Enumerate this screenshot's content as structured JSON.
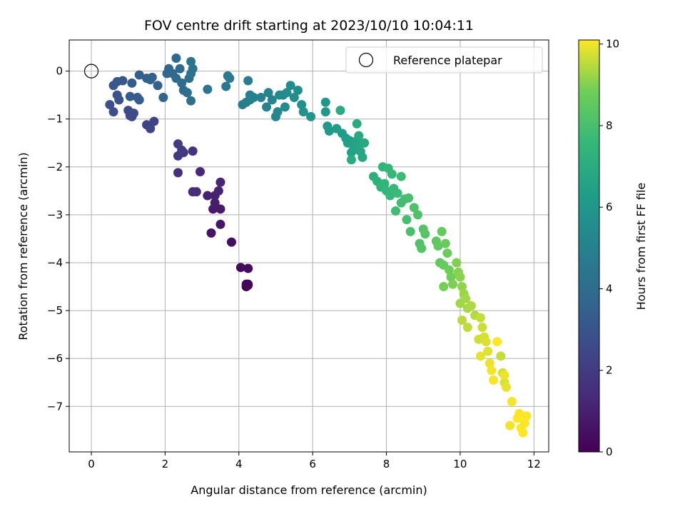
{
  "chart_data": {
    "type": "scatter",
    "title": "FOV centre drift starting at 2023/10/10 10:04:11",
    "xlabel": "Angular distance from reference (arcmin)",
    "ylabel": "Rotation from reference (arcmin)",
    "xlim": [
      -0.6,
      12.4
    ],
    "ylim": [
      -7.95,
      0.65
    ],
    "xticks": [
      0,
      2,
      4,
      6,
      8,
      10,
      12
    ],
    "yticks": [
      0,
      -1,
      -2,
      -3,
      -4,
      -5,
      -6,
      -7
    ],
    "grid": true,
    "legend": {
      "placement": "top-right",
      "entries": [
        "Reference platepar"
      ]
    },
    "reference_point": {
      "x": 0,
      "y": 0,
      "label": "Reference platepar"
    },
    "colorbar": {
      "label": "Hours from first FF file",
      "colormap": "viridis",
      "range": [
        0,
        10.1
      ],
      "ticks": [
        0,
        2,
        4,
        6,
        8,
        10
      ]
    },
    "points": [
      [
        4.2,
        -4.5,
        0.05
      ],
      [
        4.25,
        -4.45,
        0.1
      ],
      [
        4.2,
        -4.45,
        0.15
      ],
      [
        4.25,
        -4.47,
        0.2
      ],
      [
        4.05,
        -4.1,
        0.3
      ],
      [
        4.25,
        -4.12,
        0.35
      ],
      [
        3.8,
        -3.57,
        0.45
      ],
      [
        3.25,
        -3.38,
        0.6
      ],
      [
        3.5,
        -3.2,
        0.7
      ],
      [
        3.3,
        -2.88,
        0.8
      ],
      [
        3.5,
        -2.88,
        0.85
      ],
      [
        3.35,
        -2.75,
        0.9
      ],
      [
        3.15,
        -2.6,
        1.0
      ],
      [
        3.35,
        -2.6,
        1.05
      ],
      [
        3.45,
        -2.5,
        1.1
      ],
      [
        3.5,
        -2.32,
        1.15
      ],
      [
        2.95,
        -2.1,
        1.3
      ],
      [
        2.75,
        -2.52,
        1.4
      ],
      [
        2.85,
        -2.52,
        1.45
      ],
      [
        2.35,
        -2.12,
        1.55
      ],
      [
        2.75,
        -1.67,
        1.7
      ],
      [
        2.5,
        -1.7,
        1.8
      ],
      [
        2.35,
        -1.77,
        1.9
      ],
      [
        2.45,
        -1.65,
        1.95
      ],
      [
        2.35,
        -1.52,
        2.05
      ],
      [
        1.5,
        -1.12,
        2.25
      ],
      [
        1.6,
        -1.2,
        2.3
      ],
      [
        1.7,
        -1.05,
        2.35
      ],
      [
        1.1,
        -0.95,
        2.5
      ],
      [
        1.05,
        -0.93,
        2.55
      ],
      [
        1.0,
        -0.82,
        2.6
      ],
      [
        1.15,
        -0.88,
        2.65
      ],
      [
        0.6,
        -0.85,
        2.75
      ],
      [
        0.5,
        -0.7,
        2.8
      ],
      [
        0.75,
        -0.6,
        2.9
      ],
      [
        0.7,
        -0.5,
        2.95
      ],
      [
        0.6,
        -0.3,
        3.05
      ],
      [
        0.7,
        -0.22,
        3.1
      ],
      [
        0.85,
        -0.2,
        3.15
      ],
      [
        1.1,
        -0.25,
        3.2
      ],
      [
        1.05,
        -0.53,
        3.25
      ],
      [
        1.3,
        -0.6,
        3.3
      ],
      [
        1.25,
        -0.55,
        3.35
      ],
      [
        1.3,
        -0.08,
        3.4
      ],
      [
        1.5,
        -0.15,
        3.45
      ],
      [
        1.65,
        -0.13,
        3.5
      ],
      [
        1.6,
        -0.18,
        3.55
      ],
      [
        1.8,
        -0.3,
        3.6
      ],
      [
        1.95,
        -0.55,
        3.65
      ],
      [
        2.05,
        -0.05,
        3.7
      ],
      [
        2.1,
        0.05,
        3.75
      ],
      [
        2.2,
        -0.05,
        3.8
      ],
      [
        2.3,
        0.27,
        3.85
      ],
      [
        2.4,
        0.05,
        3.9
      ],
      [
        2.3,
        -0.15,
        3.95
      ],
      [
        2.45,
        -0.25,
        4.0
      ],
      [
        2.5,
        -0.4,
        4.05
      ],
      [
        2.6,
        -0.45,
        4.1
      ],
      [
        2.7,
        -0.62,
        4.15
      ],
      [
        2.65,
        -0.15,
        4.2
      ],
      [
        2.7,
        -0.05,
        4.25
      ],
      [
        2.75,
        0.05,
        4.3
      ],
      [
        2.7,
        0.2,
        4.35
      ],
      [
        3.15,
        -0.38,
        4.45
      ],
      [
        3.65,
        -0.32,
        4.55
      ],
      [
        3.75,
        -0.15,
        4.6
      ],
      [
        3.7,
        -0.1,
        4.65
      ],
      [
        4.1,
        -0.7,
        4.75
      ],
      [
        4.2,
        -0.65,
        4.8
      ],
      [
        4.25,
        -0.2,
        4.85
      ],
      [
        4.3,
        -0.5,
        4.9
      ],
      [
        4.3,
        -0.6,
        4.95
      ],
      [
        4.4,
        -0.55,
        5.0
      ],
      [
        4.6,
        -0.55,
        5.05
      ],
      [
        4.75,
        -0.75,
        5.1
      ],
      [
        4.8,
        -0.45,
        5.15
      ],
      [
        4.9,
        -0.6,
        5.2
      ],
      [
        5.0,
        -0.95,
        5.25
      ],
      [
        5.05,
        -0.85,
        5.3
      ],
      [
        5.1,
        -0.5,
        5.35
      ],
      [
        5.2,
        -0.5,
        5.4
      ],
      [
        5.25,
        -0.75,
        5.45
      ],
      [
        5.3,
        -0.45,
        5.5
      ],
      [
        5.4,
        -0.3,
        5.55
      ],
      [
        5.5,
        -0.55,
        5.6
      ],
      [
        5.6,
        -0.4,
        5.65
      ],
      [
        5.7,
        -0.7,
        5.7
      ],
      [
        5.75,
        -0.85,
        5.75
      ],
      [
        5.95,
        -0.95,
        5.85
      ],
      [
        6.35,
        -0.65,
        6.0
      ],
      [
        6.35,
        -0.85,
        6.05
      ],
      [
        6.4,
        -1.15,
        6.1
      ],
      [
        6.45,
        -1.25,
        6.15
      ],
      [
        6.65,
        -1.2,
        6.2
      ],
      [
        6.8,
        -1.3,
        6.25
      ],
      [
        6.9,
        -1.4,
        6.3
      ],
      [
        6.95,
        -1.5,
        6.35
      ],
      [
        7.0,
        -1.45,
        6.4
      ],
      [
        7.05,
        -1.7,
        6.45
      ],
      [
        7.1,
        -1.65,
        6.5
      ],
      [
        7.15,
        -1.6,
        6.55
      ],
      [
        7.2,
        -1.45,
        6.6
      ],
      [
        7.25,
        -1.55,
        6.65
      ],
      [
        7.3,
        -1.68,
        6.7
      ],
      [
        7.35,
        -1.8,
        6.75
      ],
      [
        7.4,
        -1.5,
        6.8
      ],
      [
        7.25,
        -1.35,
        6.85
      ],
      [
        7.2,
        -1.1,
        6.9
      ],
      [
        6.75,
        -0.82,
        6.95
      ],
      [
        7.05,
        -1.85,
        7.0
      ],
      [
        7.65,
        -2.2,
        7.2
      ],
      [
        7.75,
        -2.3,
        7.25
      ],
      [
        7.85,
        -2.42,
        7.3
      ],
      [
        7.9,
        -2.0,
        7.35
      ],
      [
        7.95,
        -2.35,
        7.4
      ],
      [
        8.0,
        -2.5,
        7.45
      ],
      [
        8.05,
        -2.03,
        7.5
      ],
      [
        8.1,
        -2.6,
        7.55
      ],
      [
        8.15,
        -2.15,
        7.6
      ],
      [
        8.2,
        -2.45,
        7.65
      ],
      [
        8.3,
        -2.55,
        7.7
      ],
      [
        8.4,
        -2.2,
        7.75
      ],
      [
        8.25,
        -2.92,
        7.8
      ],
      [
        8.4,
        -2.75,
        7.85
      ],
      [
        8.5,
        -2.67,
        7.9
      ],
      [
        8.55,
        -3.1,
        7.95
      ],
      [
        8.6,
        -2.65,
        8.0
      ],
      [
        8.65,
        -3.35,
        8.05
      ],
      [
        8.75,
        -2.85,
        8.1
      ],
      [
        8.85,
        -3.0,
        8.15
      ],
      [
        8.9,
        -3.6,
        8.2
      ],
      [
        8.95,
        -3.7,
        8.25
      ],
      [
        9.0,
        -3.3,
        8.3
      ],
      [
        9.05,
        -3.4,
        8.35
      ],
      [
        9.35,
        -3.55,
        8.45
      ],
      [
        9.4,
        -3.65,
        8.5
      ],
      [
        9.45,
        -4.0,
        8.55
      ],
      [
        9.5,
        -3.35,
        8.6
      ],
      [
        9.55,
        -4.05,
        8.65
      ],
      [
        9.6,
        -3.6,
        8.7
      ],
      [
        9.65,
        -3.8,
        8.75
      ],
      [
        9.7,
        -4.15,
        8.8
      ],
      [
        9.75,
        -4.3,
        8.85
      ],
      [
        9.55,
        -4.5,
        8.9
      ],
      [
        9.8,
        -4.45,
        8.95
      ],
      [
        9.9,
        -4.0,
        9.0
      ],
      [
        9.95,
        -4.2,
        9.05
      ],
      [
        10.0,
        -4.3,
        9.1
      ],
      [
        10.05,
        -4.5,
        9.15
      ],
      [
        10.1,
        -4.65,
        9.2
      ],
      [
        10.0,
        -4.85,
        9.25
      ],
      [
        10.15,
        -4.75,
        9.3
      ],
      [
        10.2,
        -4.95,
        9.35
      ],
      [
        10.3,
        -4.9,
        9.4
      ],
      [
        10.4,
        -5.1,
        9.45
      ],
      [
        10.05,
        -5.2,
        9.5
      ],
      [
        10.2,
        -5.35,
        9.55
      ],
      [
        10.55,
        -5.15,
        9.6
      ],
      [
        10.6,
        -5.35,
        9.65
      ],
      [
        10.5,
        -5.6,
        9.7
      ],
      [
        10.65,
        -5.55,
        9.75
      ],
      [
        10.7,
        -5.65,
        9.8
      ],
      [
        10.75,
        -5.85,
        9.85
      ],
      [
        10.55,
        -5.95,
        9.9
      ],
      [
        10.8,
        -6.1,
        9.95
      ],
      [
        10.85,
        -6.25,
        10.0
      ],
      [
        10.9,
        -6.45,
        10.05
      ],
      [
        11.0,
        -5.65,
        10.1
      ],
      [
        11.1,
        -5.95,
        9.6
      ],
      [
        11.15,
        -6.3,
        9.7
      ],
      [
        11.2,
        -6.5,
        9.8
      ],
      [
        11.25,
        -6.6,
        9.9
      ],
      [
        11.2,
        -6.35,
        9.95
      ],
      [
        11.35,
        -7.4,
        10.0
      ],
      [
        11.4,
        -6.9,
        10.05
      ],
      [
        11.55,
        -7.25,
        10.08
      ],
      [
        11.6,
        -7.15,
        10.1
      ],
      [
        11.65,
        -7.45,
        10.1
      ],
      [
        11.7,
        -7.55,
        10.1
      ],
      [
        11.75,
        -7.35,
        10.1
      ],
      [
        11.8,
        -7.2,
        10.1
      ]
    ]
  }
}
